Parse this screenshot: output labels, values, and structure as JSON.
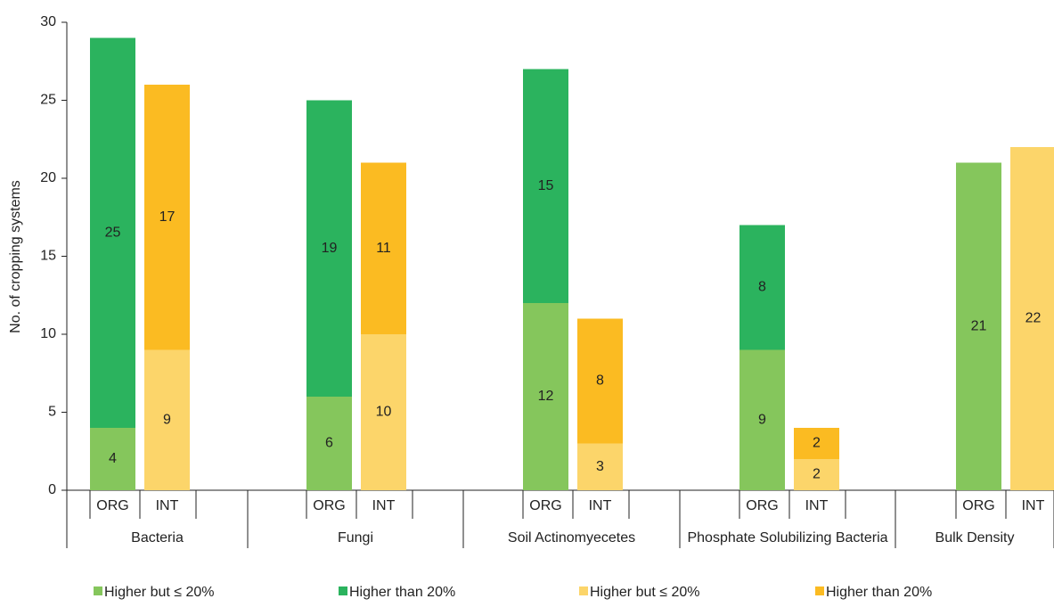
{
  "chart_data": {
    "type": "stacked-grouped-bar",
    "ylabel": "No. of cropping systems",
    "categories": [
      "Bacteria",
      "Fungi",
      "Soil Actinomyecetes",
      "Phosphate Solubilizing Bacteria",
      "Bulk Density"
    ],
    "subcategories": [
      "ORG",
      "INT"
    ],
    "series": [
      {
        "name": "Higher but ≤ 20%",
        "stack": "ORG",
        "color": "#85c65c",
        "values": [
          4,
          6,
          12,
          9,
          21
        ]
      },
      {
        "name": "Higher than 20%",
        "stack": "ORG",
        "color": "#2bb35e",
        "values": [
          25,
          19,
          15,
          8,
          null
        ]
      },
      {
        "name": "Higher but ≤ 20%",
        "stack": "INT",
        "color": "#fcd56a",
        "values": [
          9,
          10,
          3,
          2,
          22
        ]
      },
      {
        "name": "Higher than 20%",
        "stack": "INT",
        "color": "#fbbb22",
        "values": [
          17,
          11,
          8,
          2,
          null
        ]
      }
    ],
    "ylim": [
      0,
      30
    ],
    "yticks": [
      0,
      5,
      10,
      15,
      20,
      25,
      30
    ]
  }
}
